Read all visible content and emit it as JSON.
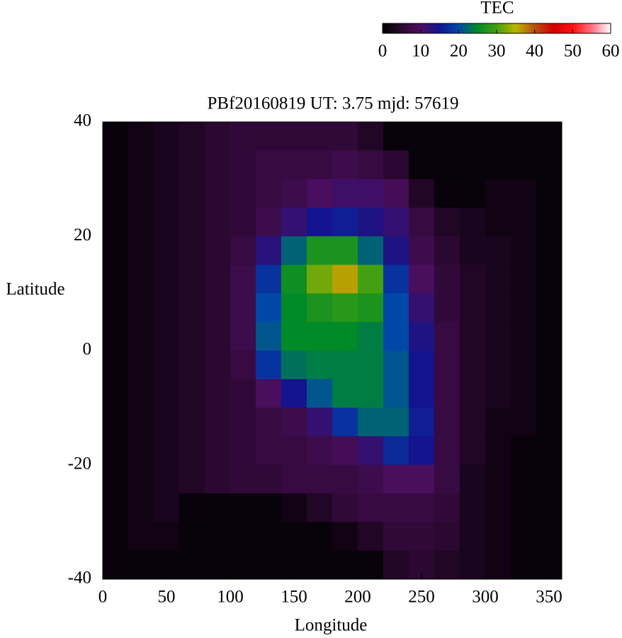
{
  "chart_data": {
    "type": "heatmap",
    "title": "PBf20160819  UT: 3.75  mjd: 57619",
    "xlabel": "Longitude",
    "ylabel": "Latitude",
    "colorbar_label": "TEC",
    "xlim": [
      0,
      360
    ],
    "xticks": [
      0,
      50,
      100,
      150,
      200,
      250,
      300,
      350
    ],
    "ylim": [
      -40,
      40
    ],
    "yticks": [
      -40,
      -20,
      0,
      20,
      40
    ],
    "zlim": [
      0,
      60
    ],
    "zticks": [
      0,
      10,
      20,
      30,
      40,
      50,
      60
    ],
    "colorscale": [
      "#000000",
      "#2a0830",
      "#4a0e5e",
      "#14148e",
      "#0048a8",
      "#008a28",
      "#44a010",
      "#b8b400",
      "#b85010",
      "#d00000",
      "#ff1010",
      "#ff7080",
      "#ffffff"
    ],
    "x": [
      10,
      30,
      50,
      70,
      90,
      110,
      130,
      150,
      170,
      190,
      210,
      230,
      250,
      270,
      290,
      310,
      330,
      350
    ],
    "y": [
      37.5,
      32.5,
      27.5,
      22.5,
      17.5,
      12.5,
      7.5,
      2.5,
      -2.5,
      -7.5,
      -12.5,
      -17.5,
      -22.5,
      -27.5,
      -32.5,
      -37.5
    ],
    "z": [
      [
        1,
        2,
        3,
        4,
        5,
        6,
        6,
        6,
        6,
        6,
        4,
        1,
        1,
        1,
        1,
        1,
        1,
        1
      ],
      [
        1,
        2,
        3,
        4,
        5,
        6,
        7,
        7,
        7,
        8,
        7,
        5,
        1,
        1,
        1,
        1,
        1,
        1
      ],
      [
        1,
        2,
        3,
        4,
        5,
        6,
        7,
        8,
        10,
        11,
        11,
        9,
        4,
        1,
        1,
        2,
        2,
        1
      ],
      [
        1,
        2,
        3,
        4,
        5,
        6,
        8,
        12,
        15,
        16,
        14,
        12,
        7,
        4,
        3,
        2,
        2,
        1
      ],
      [
        1,
        2,
        3,
        4,
        5,
        7,
        13,
        22,
        27,
        27,
        22,
        14,
        8,
        5,
        3,
        3,
        2,
        1
      ],
      [
        1,
        2,
        3,
        4,
        5,
        8,
        18,
        26,
        32,
        36,
        30,
        18,
        10,
        6,
        4,
        3,
        2,
        1
      ],
      [
        1,
        2,
        3,
        4,
        5,
        8,
        20,
        25,
        27,
        28,
        27,
        20,
        12,
        6,
        4,
        3,
        2,
        1
      ],
      [
        1,
        2,
        3,
        4,
        5,
        8,
        21,
        25,
        25,
        25,
        24,
        20,
        14,
        7,
        4,
        3,
        2,
        1
      ],
      [
        1,
        2,
        3,
        4,
        5,
        7,
        18,
        23,
        24,
        24,
        24,
        21,
        15,
        7,
        4,
        3,
        2,
        1
      ],
      [
        1,
        2,
        3,
        4,
        5,
        6,
        10,
        15,
        21,
        24,
        24,
        21,
        15,
        7,
        4,
        3,
        2,
        1
      ],
      [
        1,
        2,
        3,
        4,
        5,
        6,
        7,
        8,
        12,
        18,
        22,
        22,
        16,
        7,
        4,
        2,
        2,
        1
      ],
      [
        1,
        2,
        3,
        4,
        5,
        6,
        7,
        7,
        8,
        9,
        12,
        17,
        15,
        7,
        4,
        2,
        1,
        1
      ],
      [
        1,
        2,
        3,
        4,
        5,
        6,
        6,
        7,
        7,
        7,
        8,
        10,
        10,
        7,
        3,
        2,
        1,
        1
      ],
      [
        1,
        2,
        3,
        1,
        1,
        1,
        1,
        2,
        4,
        6,
        7,
        7,
        7,
        6,
        3,
        2,
        1,
        1
      ],
      [
        1,
        2,
        2,
        1,
        1,
        1,
        1,
        1,
        1,
        2,
        4,
        6,
        6,
        5,
        3,
        2,
        1,
        1
      ],
      [
        1,
        1,
        1,
        1,
        1,
        1,
        1,
        1,
        1,
        1,
        1,
        4,
        5,
        4,
        3,
        2,
        1,
        1
      ]
    ]
  }
}
